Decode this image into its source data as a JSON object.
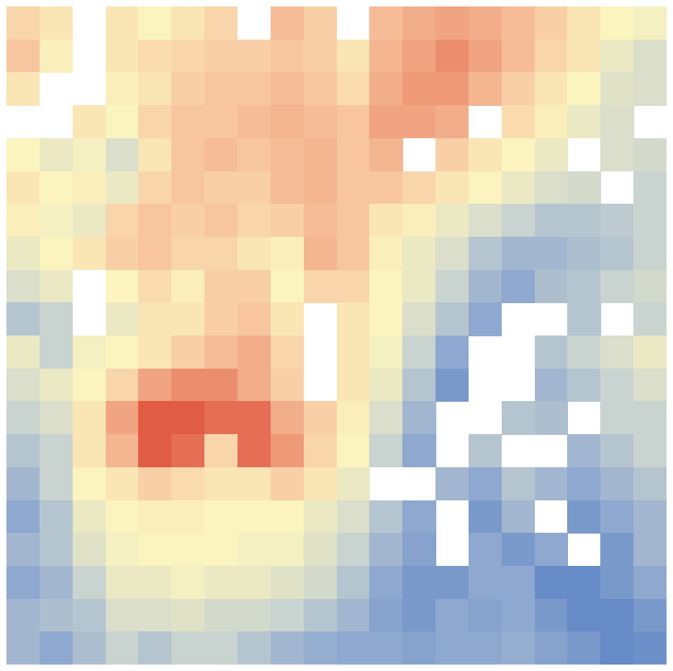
{
  "chart_data": {
    "type": "heatmap",
    "xlim": [
      0,
      20
    ],
    "ylim": [
      0,
      20
    ],
    "tick_labels": false,
    "color_range": [
      0,
      100
    ],
    "cells": [
      [
        60,
        55,
        null,
        55,
        50,
        55,
        60,
        null,
        68,
        62,
        null,
        68,
        72,
        75,
        72,
        68,
        62,
        55,
        50,
        48
      ],
      [
        65,
        52,
        null,
        55,
        58,
        60,
        62,
        62,
        65,
        62,
        55,
        70,
        75,
        80,
        75,
        68,
        60,
        55,
        45,
        40
      ],
      [
        55,
        null,
        null,
        52,
        55,
        62,
        65,
        65,
        68,
        65,
        58,
        72,
        78,
        78,
        70,
        62,
        55,
        50,
        42,
        40
      ],
      [
        null,
        null,
        55,
        50,
        60,
        65,
        65,
        68,
        70,
        68,
        65,
        75,
        75,
        72,
        null,
        58,
        52,
        45,
        40,
        null
      ],
      [
        50,
        45,
        48,
        40,
        55,
        65,
        68,
        65,
        68,
        70,
        65,
        70,
        null,
        62,
        55,
        50,
        45,
        null,
        40,
        38
      ],
      [
        55,
        50,
        52,
        45,
        60,
        65,
        62,
        62,
        68,
        70,
        65,
        65,
        60,
        55,
        50,
        45,
        40,
        38,
        null,
        35
      ],
      [
        52,
        48,
        45,
        60,
        65,
        62,
        65,
        60,
        62,
        68,
        65,
        55,
        52,
        45,
        40,
        35,
        30,
        30,
        32,
        35
      ],
      [
        45,
        50,
        55,
        62,
        65,
        60,
        60,
        55,
        52,
        70,
        65,
        52,
        45,
        40,
        30,
        25,
        25,
        28,
        30,
        35
      ],
      [
        40,
        45,
        null,
        50,
        58,
        52,
        62,
        62,
        50,
        60,
        60,
        50,
        45,
        35,
        25,
        20,
        28,
        30,
        35,
        38
      ],
      [
        30,
        35,
        null,
        45,
        55,
        55,
        62,
        65,
        55,
        null,
        55,
        50,
        40,
        30,
        20,
        null,
        null,
        30,
        null,
        35
      ],
      [
        45,
        35,
        48,
        50,
        55,
        62,
        68,
        72,
        60,
        null,
        55,
        48,
        35,
        20,
        null,
        null,
        30,
        35,
        40,
        45
      ],
      [
        40,
        45,
        50,
        60,
        75,
        80,
        80,
        72,
        62,
        null,
        55,
        45,
        30,
        15,
        null,
        null,
        25,
        30,
        35,
        40
      ],
      [
        35,
        40,
        55,
        75,
        88,
        88,
        85,
        85,
        72,
        62,
        52,
        40,
        25,
        null,
        null,
        30,
        28,
        null,
        35,
        35
      ],
      [
        30,
        35,
        55,
        70,
        88,
        85,
        60,
        85,
        78,
        60,
        50,
        35,
        20,
        null,
        30,
        null,
        null,
        25,
        30,
        35
      ],
      [
        25,
        35,
        50,
        55,
        62,
        58,
        55,
        55,
        62,
        55,
        45,
        null,
        null,
        25,
        20,
        30,
        25,
        20,
        25,
        30
      ],
      [
        20,
        30,
        45,
        50,
        52,
        52,
        50,
        50,
        50,
        45,
        40,
        30,
        20,
        null,
        15,
        25,
        null,
        15,
        20,
        25
      ],
      [
        25,
        30,
        42,
        48,
        50,
        50,
        50,
        48,
        48,
        42,
        35,
        25,
        18,
        null,
        20,
        15,
        20,
        null,
        15,
        25
      ],
      [
        20,
        25,
        35,
        45,
        45,
        48,
        45,
        45,
        42,
        38,
        30,
        20,
        15,
        15,
        20,
        20,
        10,
        10,
        15,
        20
      ],
      [
        25,
        28,
        30,
        40,
        40,
        42,
        38,
        38,
        35,
        30,
        25,
        18,
        15,
        20,
        18,
        20,
        15,
        10,
        10,
        15
      ],
      [
        25,
        20,
        28,
        35,
        30,
        35,
        35,
        30,
        25,
        22,
        20,
        20,
        18,
        20,
        20,
        22,
        18,
        15,
        10,
        12
      ]
    ]
  }
}
